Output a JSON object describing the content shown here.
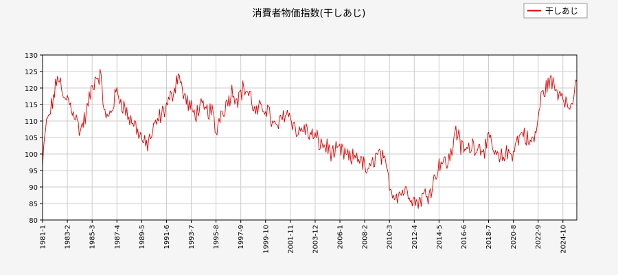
{
  "chart_data": {
    "type": "line",
    "title": "消費者物価指数(干しあじ)",
    "xlabel": "",
    "ylabel": "",
    "ylim": [
      80,
      130
    ],
    "y_ticks": [
      80,
      85,
      90,
      95,
      100,
      105,
      110,
      115,
      120,
      125,
      130
    ],
    "x_ticks": [
      "1981-1",
      "1983-2",
      "1985-3",
      "1987-4",
      "1989-5",
      "1991-6",
      "1993-7",
      "1995-8",
      "1997-9",
      "1999-10",
      "2001-11",
      "2003-12",
      "2006-1",
      "2008-2",
      "2010-3",
      "2012-4",
      "2014-5",
      "2016-6",
      "2018-7",
      "2020-8",
      "2022-9",
      "2024-10"
    ],
    "grid": true,
    "legend_position": "top-right",
    "series": [
      {
        "name": "干しあじ",
        "color": "#dd0000",
        "x_start": "1981-1",
        "x_end": "2025-12",
        "anchors": [
          [
            "1981-01",
            96
          ],
          [
            "1981-04",
            108
          ],
          [
            "1981-09",
            113
          ],
          [
            "1982-05",
            124
          ],
          [
            "1982-10",
            116
          ],
          [
            "1983-02",
            117
          ],
          [
            "1983-08",
            113
          ],
          [
            "1984-03",
            107
          ],
          [
            "1984-09",
            112
          ],
          [
            "1985-01",
            118
          ],
          [
            "1985-06",
            123
          ],
          [
            "1985-11",
            124
          ],
          [
            "1986-05",
            110
          ],
          [
            "1986-10",
            113
          ],
          [
            "1987-04",
            119
          ],
          [
            "1987-10",
            115
          ],
          [
            "1988-04",
            111
          ],
          [
            "1988-10",
            109
          ],
          [
            "1989-03",
            106
          ],
          [
            "1989-09",
            102
          ],
          [
            "1990-03",
            106
          ],
          [
            "1990-09",
            110
          ],
          [
            "1991-03",
            113
          ],
          [
            "1991-09",
            116
          ],
          [
            "1992-03",
            121
          ],
          [
            "1992-06",
            125
          ],
          [
            "1992-10",
            119
          ],
          [
            "1993-04",
            115
          ],
          [
            "1993-10",
            112
          ],
          [
            "1994-04",
            114
          ],
          [
            "1994-10",
            113
          ],
          [
            "1995-04",
            113
          ],
          [
            "1995-08",
            106
          ],
          [
            "1995-12",
            112
          ],
          [
            "1996-06",
            115
          ],
          [
            "1996-12",
            119
          ],
          [
            "1997-06",
            117
          ],
          [
            "1997-12",
            120
          ],
          [
            "1998-06",
            118
          ],
          [
            "1998-12",
            112
          ],
          [
            "1999-06",
            114
          ],
          [
            "1999-12",
            114
          ],
          [
            "2000-06",
            108
          ],
          [
            "2000-12",
            109
          ],
          [
            "2001-06",
            113
          ],
          [
            "2001-12",
            111
          ],
          [
            "2002-06",
            106
          ],
          [
            "2002-12",
            108
          ],
          [
            "2003-06",
            106
          ],
          [
            "2003-12",
            105
          ],
          [
            "2004-06",
            103
          ],
          [
            "2004-12",
            102
          ],
          [
            "2005-06",
            100
          ],
          [
            "2005-12",
            101
          ],
          [
            "2006-06",
            100
          ],
          [
            "2006-12",
            98
          ],
          [
            "2007-06",
            100
          ],
          [
            "2007-12",
            97
          ],
          [
            "2008-06",
            94
          ],
          [
            "2008-12",
            99
          ],
          [
            "2009-06",
            100
          ],
          [
            "2009-12",
            95
          ],
          [
            "2010-06",
            88
          ],
          [
            "2010-12",
            88
          ],
          [
            "2011-06",
            89
          ],
          [
            "2011-12",
            88
          ],
          [
            "2012-06",
            85
          ],
          [
            "2012-12",
            87
          ],
          [
            "2013-06",
            88
          ],
          [
            "2013-12",
            92
          ],
          [
            "2014-06",
            98
          ],
          [
            "2014-12",
            97
          ],
          [
            "2015-06",
            100
          ],
          [
            "2015-09",
            108
          ],
          [
            "2015-12",
            106
          ],
          [
            "2016-03",
            102
          ],
          [
            "2016-09",
            101
          ],
          [
            "2017-03",
            103
          ],
          [
            "2017-09",
            102
          ],
          [
            "2018-03",
            102
          ],
          [
            "2018-09",
            104
          ],
          [
            "2019-01",
            100
          ],
          [
            "2019-06",
            98
          ],
          [
            "2019-12",
            100
          ],
          [
            "2020-06",
            100
          ],
          [
            "2020-12",
            104
          ],
          [
            "2021-06",
            107
          ],
          [
            "2021-12",
            103
          ],
          [
            "2022-06",
            105
          ],
          [
            "2022-12",
            117
          ],
          [
            "2023-06",
            121
          ],
          [
            "2023-10",
            122
          ],
          [
            "2024-04",
            119
          ],
          [
            "2024-10",
            119
          ],
          [
            "2025-04",
            113
          ],
          [
            "2025-08",
            117
          ],
          [
            "2025-12",
            120
          ]
        ]
      }
    ]
  }
}
